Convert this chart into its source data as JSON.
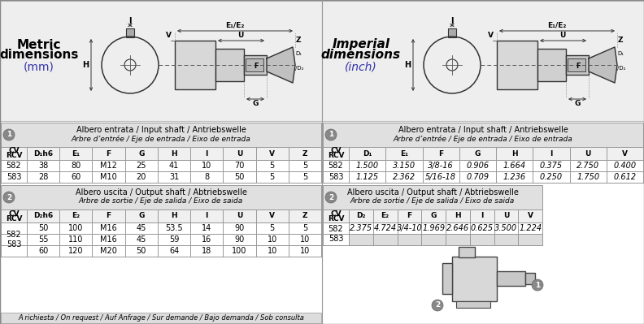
{
  "metric_title_line1": "Metric",
  "metric_title_line2": "dimensions",
  "metric_title_line3": "(mm)",
  "imperial_title_line1": "Imperial",
  "imperial_title_line2": "dimensions",
  "imperial_title_line3": "(inch)",
  "table1_metric_header1": "Albero entrata / Input shaft / Antriebswelle",
  "table1_metric_header2": "Arbre d’entrée / Eje de entrada / Eixo de entrada",
  "table1_metric_cols": [
    "CV\nRCV",
    "D₁h6",
    "E₁",
    "F",
    "G",
    "H",
    "I",
    "U",
    "V",
    "Z"
  ],
  "table1_metric_rows": [
    [
      "582",
      "38",
      "80",
      "M12",
      "25",
      "41",
      "10",
      "70",
      "5",
      "5"
    ],
    [
      "583",
      "28",
      "60",
      "M10",
      "20",
      "31",
      "8",
      "50",
      "5",
      "5"
    ]
  ],
  "table2_metric_header1": "Albero uscita / Output shaft / Abtriebswelle",
  "table2_metric_header2": "Arbre de sortie / Eje de salida / Eixo de saida",
  "table2_metric_cols": [
    "CV\nRCV",
    "D₂h6",
    "E₂",
    "F",
    "G",
    "H",
    "I",
    "U",
    "V",
    "Z"
  ],
  "table2_metric_rows": [
    [
      "582\n583",
      "50",
      "100",
      "M16",
      "45",
      "53.5",
      "14",
      "90",
      "5",
      "5"
    ],
    [
      "",
      "55",
      "110",
      "M16",
      "45",
      "59",
      "16",
      "90",
      "10",
      "10"
    ],
    [
      "",
      "60",
      "120",
      "M20",
      "50",
      "64",
      "18",
      "100",
      "10",
      "10"
    ]
  ],
  "table1_imperial_header1": "Albero entrata / Input shaft / Antriebswelle",
  "table1_imperial_header2": "Arbre d’entrée / Eje de entrada / Eixo de entrada",
  "table1_imperial_cols": [
    "CV\nRCV",
    "D₁",
    "E₁",
    "F",
    "G",
    "H",
    "I",
    "U",
    "V"
  ],
  "table1_imperial_rows": [
    [
      "582",
      "1.500",
      "3.150",
      "3/8-16",
      "0.906",
      "1.664",
      "0.375",
      "2.750",
      "0.400"
    ],
    [
      "583",
      "1.125",
      "2.362",
      "5/16-18",
      "0.709",
      "1.236",
      "0.250",
      "1.750",
      "0.612"
    ]
  ],
  "table2_imperial_header1": "Albero uscita / Output shaft / Abtriebswelle",
  "table2_imperial_header2": "Arbre de sortie / Eje de salida / Eixo de saida",
  "table2_imperial_cols": [
    "CV\nRCV",
    "D₂",
    "E₂",
    "F",
    "G",
    "H",
    "I",
    "U",
    "V"
  ],
  "table2_imperial_rows": [
    [
      "582\n583",
      "2.375",
      "4.724",
      "3/4-10",
      "1.969",
      "2.646",
      "0.625",
      "3.500",
      "1.224"
    ],
    [
      "",
      "",
      "",
      "",
      "",
      "",
      "",
      "",
      ""
    ]
  ],
  "note": "A richiesta / On request / Auf Anfrage / Sur demande / Bajo demanda / Sob consulta",
  "col1_gray": "#cccccc",
  "header_bg": "#e0e0e0",
  "col_header_bg": "#f0f0f0",
  "panel_bg": "#eeeeee",
  "table_border": "#999999",
  "shade583": "#dddddd"
}
